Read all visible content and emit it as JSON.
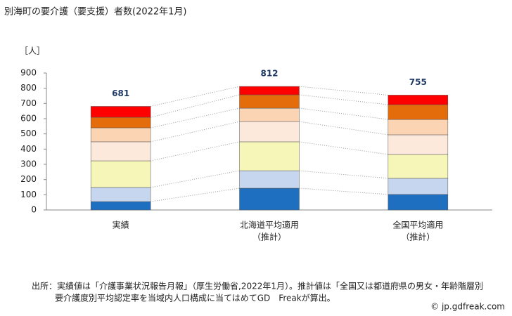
{
  "chart_data": {
    "type": "stacked-bar",
    "title": "別海町の要介護（要支援）者数(2022年1月)",
    "y_unit": "［人］",
    "categories": [
      "実績",
      "北海道平均適用",
      "全国平均適用"
    ],
    "category_notes": [
      null,
      "（推計）",
      "（推計）"
    ],
    "series": [
      {
        "color": "#1f6fc0",
        "values": [
          55,
          143,
          102
        ]
      },
      {
        "color": "#c6d6ef",
        "values": [
          93,
          115,
          106
        ]
      },
      {
        "color": "#f6f6b9",
        "values": [
          175,
          190,
          157
        ]
      },
      {
        "color": "#fde9dc",
        "values": [
          125,
          133,
          129
        ]
      },
      {
        "color": "#fbd4b4",
        "values": [
          92,
          88,
          101
        ]
      },
      {
        "color": "#e46c0a",
        "values": [
          69,
          88,
          97
        ]
      },
      {
        "color": "#ff0000",
        "values": [
          72,
          55,
          63
        ]
      }
    ],
    "totals": [
      681,
      812,
      755
    ],
    "ylim": [
      0,
      900
    ],
    "yticks": [
      0,
      100,
      200,
      300,
      400,
      500,
      600,
      700,
      800,
      900
    ],
    "connectors": true,
    "notes": [
      "出所：実績値は「介護事業状況報告月報」（厚生労働省,2022年1月）。推計値は「全国又は都道府県の男女・年齢階層別",
      "要介護度別平均認定率を当域内人口構成に当てはめてGD　Freakが算出。"
    ],
    "source": "© jp.gdfreak.com"
  }
}
